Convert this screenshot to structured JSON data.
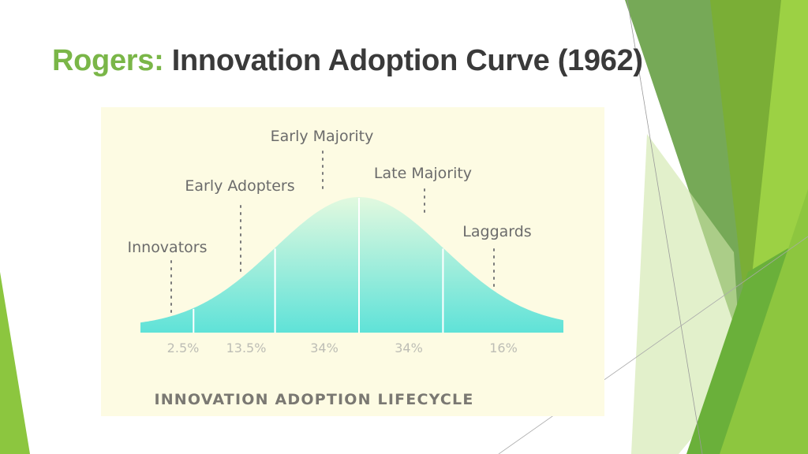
{
  "slide": {
    "title_accent": "Rogers:",
    "title_rest": "Innovation Adoption Curve (1962)"
  },
  "colors": {
    "accent_green": "#7ab648",
    "chart_background": "#fdfbe3",
    "curve_fill_top": "#e2f9df",
    "curve_fill_bottom": "#5fe2d8",
    "label_text": "#6b6b6b",
    "footer_text": "#7a7872"
  },
  "chart_data": {
    "type": "area",
    "title": "INNOVATION ADOPTION LIFECYCLE",
    "distribution": "normal",
    "segments": [
      {
        "name": "Innovators",
        "percent": "2.5%",
        "share": 2.5
      },
      {
        "name": "Early Adopters",
        "percent": "13.5%",
        "share": 13.5
      },
      {
        "name": "Early Majority",
        "percent": "34%",
        "share": 34
      },
      {
        "name": "Late Majority",
        "percent": "34%",
        "share": 34
      },
      {
        "name": "Laggards",
        "percent": "16%",
        "share": 16
      }
    ]
  }
}
